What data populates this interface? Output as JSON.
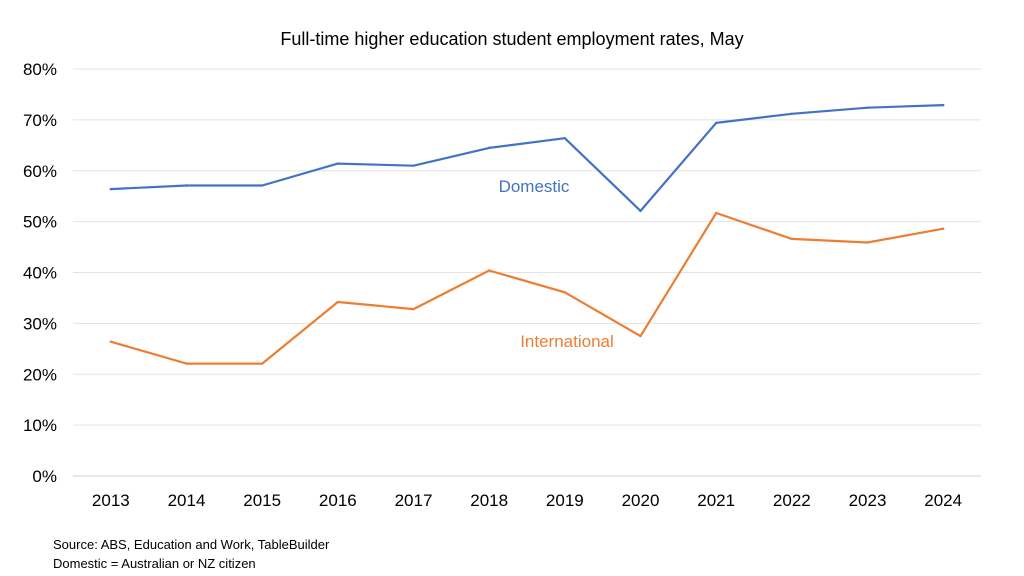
{
  "chart_data": {
    "type": "line",
    "title": "Full-time higher education student employment rates, May",
    "xlabel": "",
    "ylabel": "",
    "categories": [
      "2013",
      "2014",
      "2015",
      "2016",
      "2017",
      "2018",
      "2019",
      "2020",
      "2021",
      "2022",
      "2023",
      "2024"
    ],
    "ylim": [
      0,
      80
    ],
    "yticks": [
      0,
      10,
      20,
      30,
      40,
      50,
      60,
      70,
      80
    ],
    "ytick_labels": [
      "0%",
      "10%",
      "20%",
      "30%",
      "40%",
      "50%",
      "60%",
      "70%",
      "80%"
    ],
    "grid": true,
    "series": [
      {
        "name": "Domestic",
        "color": "#4472C4",
        "values": [
          56.4,
          57.1,
          57.1,
          61.4,
          61.0,
          64.5,
          66.4,
          52.1,
          69.4,
          71.2,
          72.4,
          72.9
        ]
      },
      {
        "name": "International",
        "color": "#ED7D31",
        "values": [
          26.4,
          22.1,
          22.1,
          34.2,
          32.8,
          40.4,
          36.1,
          27.5,
          51.7,
          46.6,
          45.9,
          48.6
        ]
      }
    ]
  },
  "notes": {
    "source": "Source: ABS, Education and Work, TableBuilder",
    "definition": "Domestic = Australian or NZ citizen"
  }
}
